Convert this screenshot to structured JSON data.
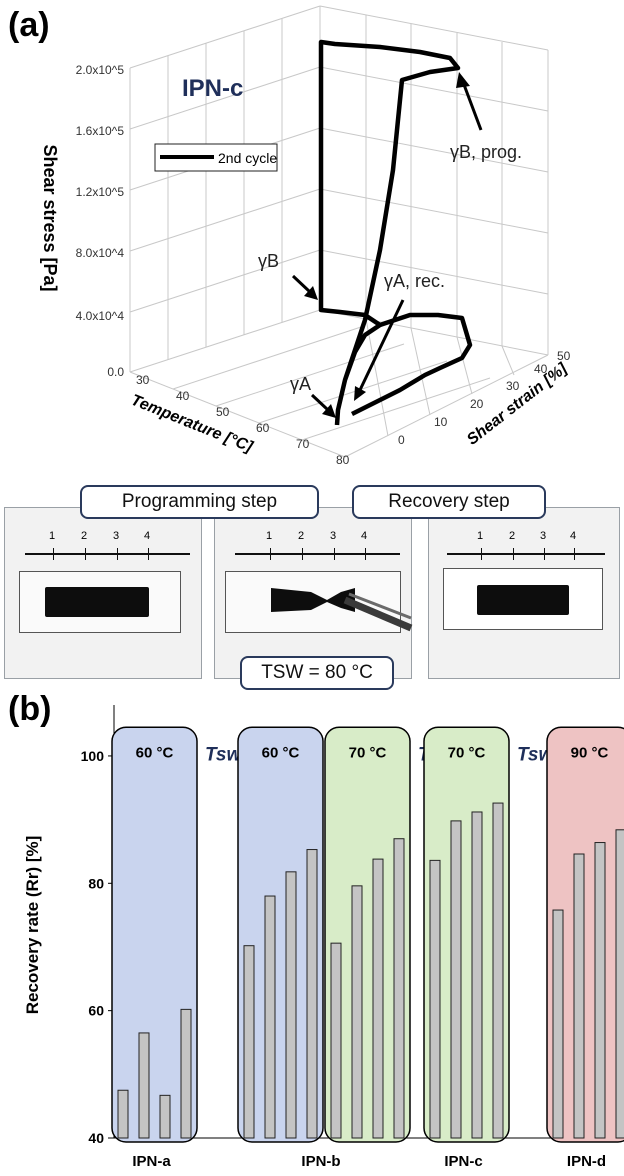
{
  "panel_a_label": "(a)",
  "panel_b_label": "(b)",
  "plot_title": "IPN-c",
  "legend_label": "2nd cycle",
  "annotations": {
    "gamma_b_prog": "γB, prog.",
    "gamma_b": "γB",
    "gamma_a_rec": "γA, rec.",
    "gamma_a": "γA"
  },
  "steps": {
    "programming": "Programming step",
    "recovery": "Recovery step",
    "tsw_value": "TSW = 80 °C"
  },
  "ruler_labels": [
    "1",
    "2",
    "3",
    "4"
  ],
  "chart_data": [
    {
      "type": "line",
      "title": "IPN-c",
      "zlabel": "Shear stress [Pa]",
      "xlabel": "Temperature [°C]",
      "ylabel": "Shear strain [%]",
      "z_ticks": [
        "0.0",
        "4.0x10^4",
        "8.0x10^4",
        "1.2x10^5",
        "1.6x10^5",
        "2.0x10^5"
      ],
      "x_ticks": [
        "30",
        "40",
        "50",
        "60",
        "70",
        "80"
      ],
      "y_ticks": [
        "0",
        "10",
        "20",
        "30",
        "40",
        "50"
      ],
      "series": [
        {
          "name": "2nd cycle"
        }
      ]
    },
    {
      "type": "bar",
      "ylabel": "Recovery rate (Rr) [%]",
      "ylim": [
        40,
        108
      ],
      "y_ticks": [
        40,
        60,
        80,
        100
      ],
      "groups": [
        {
          "name": "IPN-a",
          "values": [
            47.5,
            56.5,
            46.7,
            60.2
          ],
          "highlights": [
            {
              "label": "60 °C",
              "tsw": "Tsw",
              "color": "#c9d4ee"
            }
          ]
        },
        {
          "name": "IPN-b",
          "values": [
            70.2,
            78.0,
            81.8,
            85.3,
            70.6,
            79.6,
            83.8,
            87.0
          ],
          "highlights": [
            {
              "label": "60 °C",
              "color": "#c9d4ee"
            },
            {
              "label": "70 °C",
              "tsw": "Tsw",
              "color": "#d8ecc8"
            }
          ]
        },
        {
          "name": "IPN-c",
          "values": [
            83.6,
            89.8,
            91.2,
            92.6
          ],
          "highlights": [
            {
              "label": "70 °C",
              "tsw": "Tsw",
              "color": "#d8ecc8"
            }
          ]
        },
        {
          "name": "IPN-d",
          "values": [
            75.8,
            84.6,
            86.4,
            88.4
          ],
          "highlights": [
            {
              "label": "90 °C",
              "color": "#eec3c3"
            }
          ]
        }
      ]
    }
  ]
}
